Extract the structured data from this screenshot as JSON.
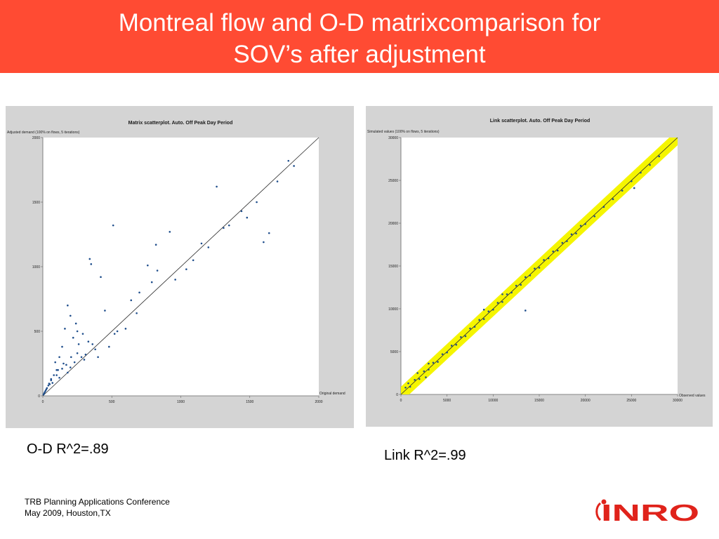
{
  "header": {
    "title_line1": "Montreal flow and O-D matrixcomparison for",
    "title_line2": "SOV’s after adjustment",
    "background": "#ff4b33"
  },
  "captions": {
    "od": "O-D R^2=.89",
    "link": "Link R^2=.99"
  },
  "footer": {
    "line1": "TRB Planning Applications Conference",
    "line2": "May 2009, Houston,TX"
  },
  "logo": {
    "text": "INRO",
    "color": "#e0231b"
  },
  "chart_data": [
    {
      "type": "scatter",
      "title": "Matrix scatterplot. Auto. Off Peak Day Period",
      "ylabel": "Adjusted demand (100% on flows, 5 iterations)",
      "xlabel": "Original demand",
      "xlim": [
        0,
        2000
      ],
      "ylim": [
        0,
        2000
      ],
      "xticks": [
        0,
        500,
        1000,
        1500,
        2000
      ],
      "yticks": [
        0,
        500,
        1000,
        1500,
        2000
      ],
      "point_color": "#1f4e8c",
      "reference_line": "y = x",
      "x": [
        510,
        1260,
        340,
        920,
        1780,
        350,
        420,
        820,
        1640,
        1480,
        1440,
        1310,
        1600,
        1150,
        1090,
        760,
        830,
        790,
        700,
        640,
        450,
        600,
        520,
        180,
        200,
        240,
        250,
        290,
        330,
        360,
        480,
        400,
        260,
        220,
        160,
        300,
        140,
        120,
        150,
        200,
        100,
        90,
        180,
        80,
        120,
        60,
        70,
        50,
        40,
        30,
        25,
        20,
        15,
        10,
        5,
        110,
        170,
        230,
        280,
        310,
        380,
        540,
        680,
        960,
        1040,
        1200,
        1350,
        1550,
        1700,
        1820,
        100,
        140,
        60,
        45,
        250,
        205
      ],
      "y": [
        1320,
        1620,
        1060,
        1270,
        1820,
        1020,
        920,
        1170,
        1260,
        1380,
        1430,
        1300,
        1190,
        1180,
        1050,
        1010,
        970,
        880,
        800,
        740,
        660,
        520,
        480,
        700,
        620,
        560,
        500,
        480,
        420,
        400,
        380,
        300,
        400,
        450,
        520,
        280,
        380,
        300,
        250,
        220,
        200,
        260,
        180,
        160,
        140,
        130,
        100,
        90,
        80,
        60,
        50,
        40,
        30,
        20,
        10,
        200,
        240,
        260,
        300,
        320,
        360,
        500,
        640,
        900,
        980,
        1150,
        1320,
        1500,
        1660,
        1780,
        160,
        210,
        120,
        95,
        330,
        300
      ]
    },
    {
      "type": "scatter",
      "title": "Link scatterplot. Auto. Off Peak Day Period",
      "ylabel": "Simulated values (100% on flows, 5 iterations)",
      "xlabel": "Observed values",
      "xlim": [
        0,
        30000
      ],
      "ylim": [
        0,
        30000
      ],
      "xticks": [
        0,
        5000,
        10000,
        15000,
        20000,
        25000,
        30000
      ],
      "yticks": [
        0,
        5000,
        10000,
        15000,
        20000,
        25000,
        30000
      ],
      "point_color": "#1f4e8c",
      "band_color": "#f5f500",
      "reference_line": "y = x",
      "x": [
        500,
        1000,
        1500,
        2000,
        2500,
        3000,
        3500,
        4000,
        4500,
        5000,
        5500,
        6000,
        6500,
        7000,
        7500,
        8000,
        8500,
        9000,
        9500,
        10000,
        10500,
        11000,
        11500,
        12000,
        12500,
        13000,
        13500,
        14000,
        14500,
        15000,
        15500,
        16000,
        16500,
        17000,
        17500,
        18000,
        18500,
        19000,
        19500,
        20000,
        21000,
        22000,
        23000,
        24000,
        25000,
        26000,
        27000,
        28000,
        13500,
        11000,
        9000,
        3000,
        1800,
        800,
        2700,
        25300
      ],
      "y": [
        800,
        900,
        1700,
        1800,
        2700,
        2900,
        3700,
        3800,
        4700,
        4900,
        5700,
        5800,
        6700,
        6800,
        7700,
        7900,
        8700,
        8800,
        9700,
        9900,
        10700,
        10800,
        11700,
        11900,
        12700,
        12800,
        13700,
        13900,
        14700,
        14800,
        15700,
        15900,
        16700,
        16800,
        17700,
        17900,
        18700,
        18800,
        19700,
        19900,
        20800,
        21900,
        22800,
        23800,
        24900,
        25900,
        26800,
        27800,
        9800,
        11700,
        9900,
        3600,
        2500,
        1300,
        2000,
        24100
      ]
    }
  ]
}
